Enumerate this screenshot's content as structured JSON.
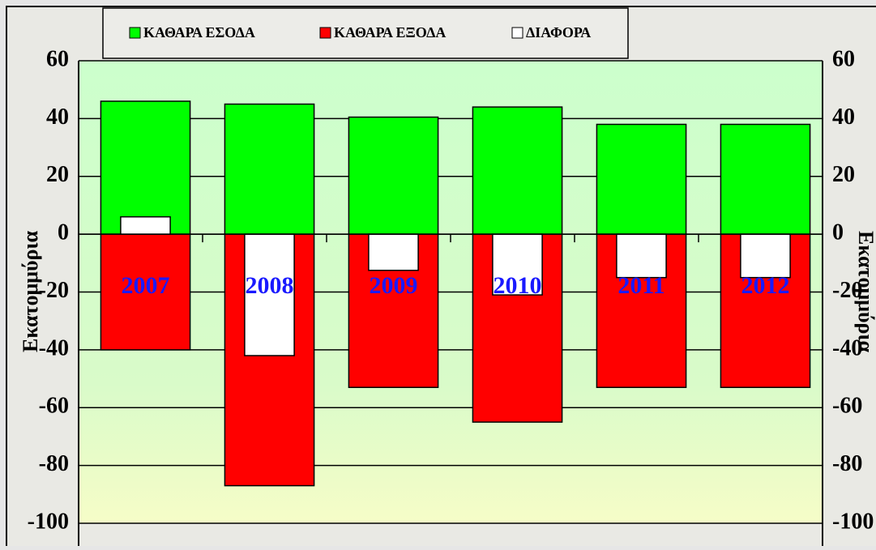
{
  "chart_data": {
    "type": "bar",
    "categories": [
      "2007",
      "2008",
      "2009",
      "2010",
      "2011",
      "2012"
    ],
    "series": [
      {
        "name": "ΚΑΘΑΡΑ ΕΣΟΔΑ",
        "color": "#00ff00",
        "values": [
          46,
          45,
          40.5,
          44,
          38,
          38
        ]
      },
      {
        "name": "ΚΑΘΑΡΑ ΕΞΟΔΑ",
        "color": "#ff0000",
        "values": [
          -40,
          -87,
          -53,
          -65,
          -53,
          -53
        ]
      },
      {
        "name": "ΔΙΑΦΟΡΑ",
        "color": "#ffffff",
        "values": [
          6,
          -42,
          -12.5,
          -21,
          -15,
          -15
        ]
      }
    ],
    "y_label": "Εκατομμύρια",
    "ylim": [
      -100,
      60
    ],
    "yticks": [
      -100,
      -80,
      -60,
      -40,
      -20,
      0,
      20,
      40,
      60
    ],
    "grid": true
  }
}
